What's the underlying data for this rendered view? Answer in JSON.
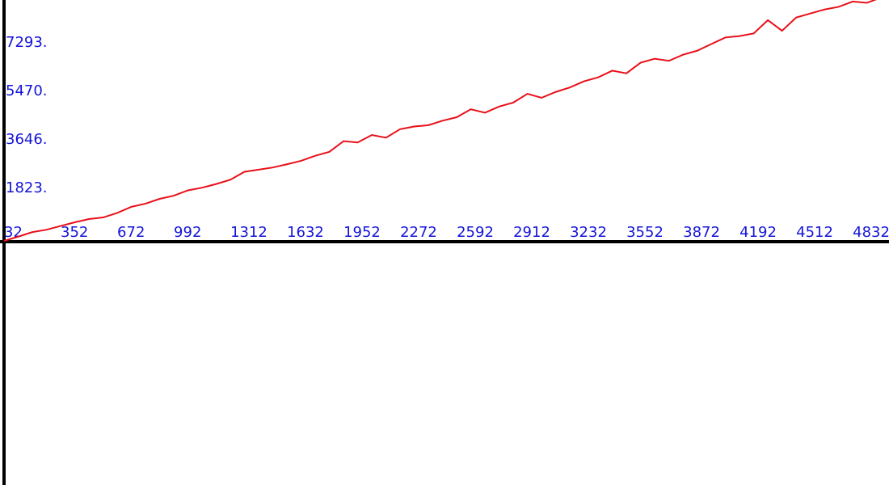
{
  "chart_data": {
    "type": "line",
    "x": [
      32,
      112,
      192,
      272,
      352,
      432,
      512,
      592,
      672,
      752,
      832,
      912,
      992,
      1072,
      1152,
      1232,
      1312,
      1392,
      1472,
      1552,
      1632,
      1712,
      1792,
      1872,
      1952,
      2032,
      2112,
      2192,
      2272,
      2352,
      2432,
      2512,
      2592,
      2672,
      2752,
      2832,
      2912,
      2992,
      3072,
      3152,
      3232,
      3312,
      3392,
      3472,
      3552,
      3632,
      3712,
      3792,
      3872,
      3952,
      4032,
      4112,
      4192,
      4272,
      4352,
      4432,
      4512,
      4592,
      4672,
      4752,
      4832,
      4912,
      4992
    ],
    "series": [
      {
        "color": "#e8101a",
        "values": [
          0,
          160,
          330,
          420,
          560,
          700,
          820,
          880,
          1050,
          1280,
          1400,
          1580,
          1700,
          1900,
          2000,
          2140,
          2300,
          2600,
          2680,
          2760,
          2880,
          3010,
          3200,
          3350,
          3750,
          3700,
          3980,
          3880,
          4200,
          4300,
          4350,
          4520,
          4650,
          4950,
          4820,
          5050,
          5200,
          5530,
          5380,
          5600,
          5770,
          6000,
          6150,
          6400,
          6300,
          6700,
          6850,
          6770,
          7000,
          7150,
          7400,
          7650,
          7700,
          7800,
          8300,
          7900,
          8400,
          8550,
          8700,
          8800,
          9000,
          8950,
          9150
        ]
      }
    ],
    "xlim": [
      9,
      5037
    ],
    "ylim": [
      -9178,
      9057
    ],
    "xticks": [
      32,
      352,
      672,
      992,
      1312,
      1632,
      1952,
      2272,
      2592,
      2912,
      3232,
      3552,
      3872,
      4192,
      4512,
      4832
    ],
    "yticks": [
      {
        "value": 1823,
        "label": "1823."
      },
      {
        "value": 3646,
        "label": "3646."
      },
      {
        "value": 5470,
        "label": "5470."
      },
      {
        "value": 7293,
        "label": "7293."
      }
    ]
  }
}
